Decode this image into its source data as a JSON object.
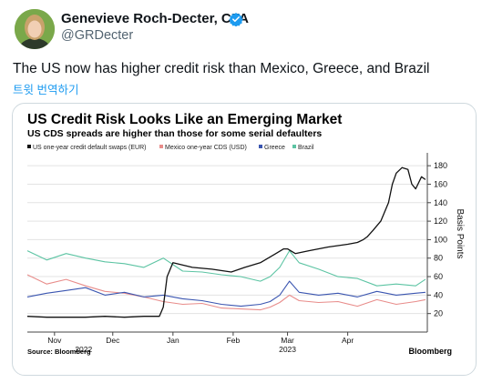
{
  "tweet": {
    "author_name": "Genevieve Roch-Decter, CFA",
    "handle": "@GRDecter",
    "text": "The US now has higher credit risk than Mexico, Greece, and Brazil",
    "translate_label": "트윗 번역하기"
  },
  "colors": {
    "us": "#111111",
    "mexico": "#e88c8a",
    "greece": "#3a55b0",
    "brazil": "#5cc4a3",
    "verified": "#1d9bf0"
  },
  "icons": {
    "verified": "verified-badge-icon"
  },
  "chart_data": {
    "type": "line",
    "title": "US Credit Risk Looks Like an Emerging Market",
    "subtitle": "US CDS spreads are higher than those for some serial defaulters",
    "ylabel": "Basis Points",
    "ylim": [
      0,
      190
    ],
    "yticks": [
      20,
      40,
      60,
      80,
      100,
      120,
      140,
      160,
      180
    ],
    "ytick_labels": [
      "20",
      "40",
      "60",
      "80",
      "100",
      "120",
      "140",
      "160",
      "180"
    ],
    "x_range": [
      0,
      206
    ],
    "x_unit": "days since 2022-10-18",
    "month_ticks": [
      {
        "label": "Nov",
        "x": 14
      },
      {
        "label": "Dec",
        "x": 44
      },
      {
        "label": "Jan",
        "x": 75
      },
      {
        "label": "Feb",
        "x": 106
      },
      {
        "label": "Mar",
        "x": 134
      },
      {
        "label": "Apr",
        "x": 165
      }
    ],
    "year_labels": [
      {
        "label": "2022",
        "x": 29
      },
      {
        "label": "2023",
        "x": 134
      }
    ],
    "source": "Source: Bloomberg",
    "brand": "Bloomberg",
    "series": [
      {
        "name": "US one-year credit default swaps (EUR)",
        "key": "us",
        "x": [
          0,
          10,
          20,
          30,
          40,
          50,
          60,
          68,
          70,
          72,
          75,
          85,
          95,
          105,
          112,
          120,
          128,
          132,
          134,
          138,
          145,
          155,
          165,
          170,
          173,
          175,
          178,
          182,
          186,
          188,
          190,
          193,
          196,
          198,
          200,
          203,
          205
        ],
        "y": [
          17,
          16,
          16,
          16,
          17,
          16,
          17,
          17,
          27,
          60,
          75,
          70,
          68,
          65,
          70,
          75,
          85,
          90,
          90,
          85,
          88,
          92,
          95,
          97,
          100,
          103,
          110,
          120,
          140,
          160,
          172,
          178,
          176,
          160,
          155,
          168,
          165
        ]
      },
      {
        "name": "Mexico one-year CDS (USD)",
        "key": "mexico",
        "x": [
          0,
          10,
          20,
          30,
          40,
          50,
          60,
          70,
          80,
          90,
          100,
          110,
          120,
          125,
          130,
          135,
          140,
          150,
          160,
          170,
          180,
          190,
          200,
          205
        ],
        "y": [
          62,
          52,
          57,
          50,
          44,
          42,
          38,
          33,
          30,
          31,
          26,
          25,
          24,
          27,
          32,
          40,
          34,
          32,
          33,
          28,
          35,
          30,
          33,
          35
        ]
      },
      {
        "name": "Greece",
        "key": "greece",
        "x": [
          0,
          10,
          20,
          30,
          40,
          50,
          60,
          70,
          80,
          90,
          100,
          110,
          120,
          125,
          130,
          135,
          140,
          150,
          160,
          170,
          180,
          190,
          200,
          205
        ],
        "y": [
          38,
          42,
          45,
          48,
          40,
          43,
          38,
          40,
          36,
          34,
          30,
          28,
          30,
          33,
          40,
          55,
          43,
          40,
          42,
          38,
          44,
          40,
          42,
          43
        ]
      },
      {
        "name": "Brazil",
        "key": "brazil",
        "x": [
          0,
          10,
          20,
          30,
          40,
          50,
          60,
          70,
          80,
          90,
          100,
          110,
          120,
          125,
          130,
          135,
          140,
          150,
          160,
          170,
          180,
          190,
          200,
          205
        ],
        "y": [
          88,
          78,
          85,
          80,
          76,
          74,
          70,
          80,
          66,
          65,
          62,
          60,
          55,
          60,
          70,
          88,
          75,
          68,
          60,
          58,
          50,
          52,
          50,
          57
        ]
      }
    ]
  }
}
